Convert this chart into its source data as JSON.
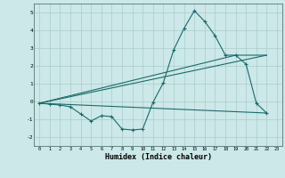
{
  "title": "",
  "xlabel": "Humidex (Indice chaleur)",
  "background_color": "#cce8e8",
  "line_color": "#1a6b6b",
  "grid_color": "#aacccc",
  "series1_x": [
    0,
    1,
    2,
    3,
    4,
    5,
    6,
    7,
    8,
    9,
    10,
    11,
    12,
    13,
    14,
    15,
    16,
    17,
    18,
    19,
    20,
    21,
    22
  ],
  "series1_y": [
    -0.1,
    -0.15,
    -0.2,
    -0.3,
    -0.7,
    -1.1,
    -0.8,
    -0.85,
    -1.55,
    -1.6,
    -1.55,
    -0.05,
    1.05,
    2.9,
    4.1,
    5.1,
    4.5,
    3.7,
    2.6,
    2.6,
    2.1,
    -0.1,
    -0.65
  ],
  "series2_x": [
    0,
    22
  ],
  "series2_y": [
    -0.1,
    -0.65
  ],
  "series3_x": [
    0,
    22
  ],
  "series3_y": [
    -0.1,
    2.6
  ],
  "series4_x": [
    0,
    19,
    22
  ],
  "series4_y": [
    -0.1,
    2.6,
    2.6
  ],
  "xlim": [
    -0.5,
    23.5
  ],
  "ylim": [
    -2.5,
    5.5
  ],
  "xticks": [
    0,
    1,
    2,
    3,
    4,
    5,
    6,
    7,
    8,
    9,
    10,
    11,
    12,
    13,
    14,
    15,
    16,
    17,
    18,
    19,
    20,
    21,
    22,
    23
  ],
  "yticks": [
    -2,
    -1,
    0,
    1,
    2,
    3,
    4,
    5
  ]
}
